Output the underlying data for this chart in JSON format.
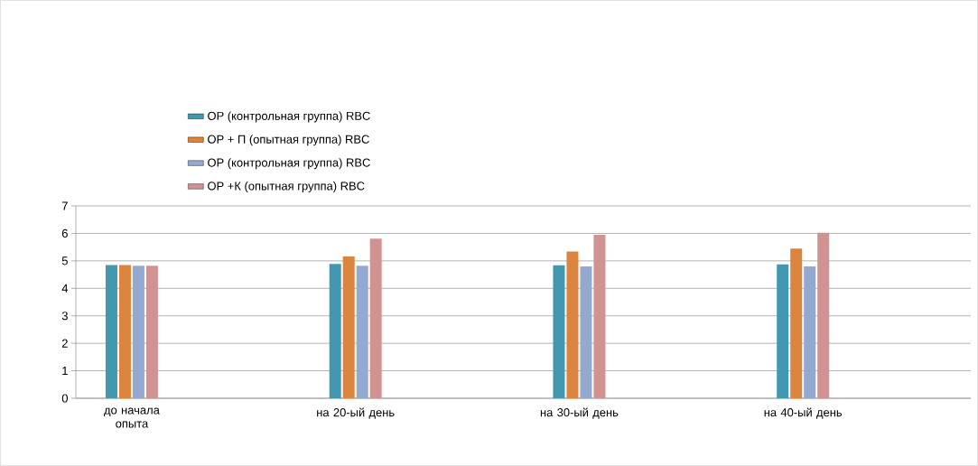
{
  "chart_data": {
    "type": "bar",
    "categories": [
      "до начала опыта",
      null,
      "на 20-ый день",
      null,
      "на 30-ый день",
      null,
      "на 40-ый день",
      null
    ],
    "series": [
      {
        "name": "ОР (контрольная группа) RBC",
        "color": "#4198af",
        "values": [
          4.85,
          null,
          4.89,
          null,
          4.84,
          null,
          4.87,
          null
        ]
      },
      {
        "name": "ОР + П (опытная группа) RBC",
        "color": "#db843d",
        "values": [
          4.85,
          null,
          5.16,
          null,
          5.34,
          null,
          5.45,
          null
        ]
      },
      {
        "name": "ОР (контрольная группа) RBC",
        "color": "#93a9cf",
        "values": [
          4.82,
          null,
          4.82,
          null,
          4.8,
          null,
          4.8,
          null
        ]
      },
      {
        "name": "ОР +К (опытная группа) RBC",
        "color": "#d19392",
        "values": [
          4.82,
          null,
          5.81,
          null,
          5.95,
          null,
          6.02,
          null
        ]
      }
    ],
    "ylim": [
      0,
      7
    ],
    "yticks": [
      0,
      1,
      2,
      3,
      4,
      5,
      6,
      7
    ],
    "grid": "y",
    "legend": "top"
  }
}
